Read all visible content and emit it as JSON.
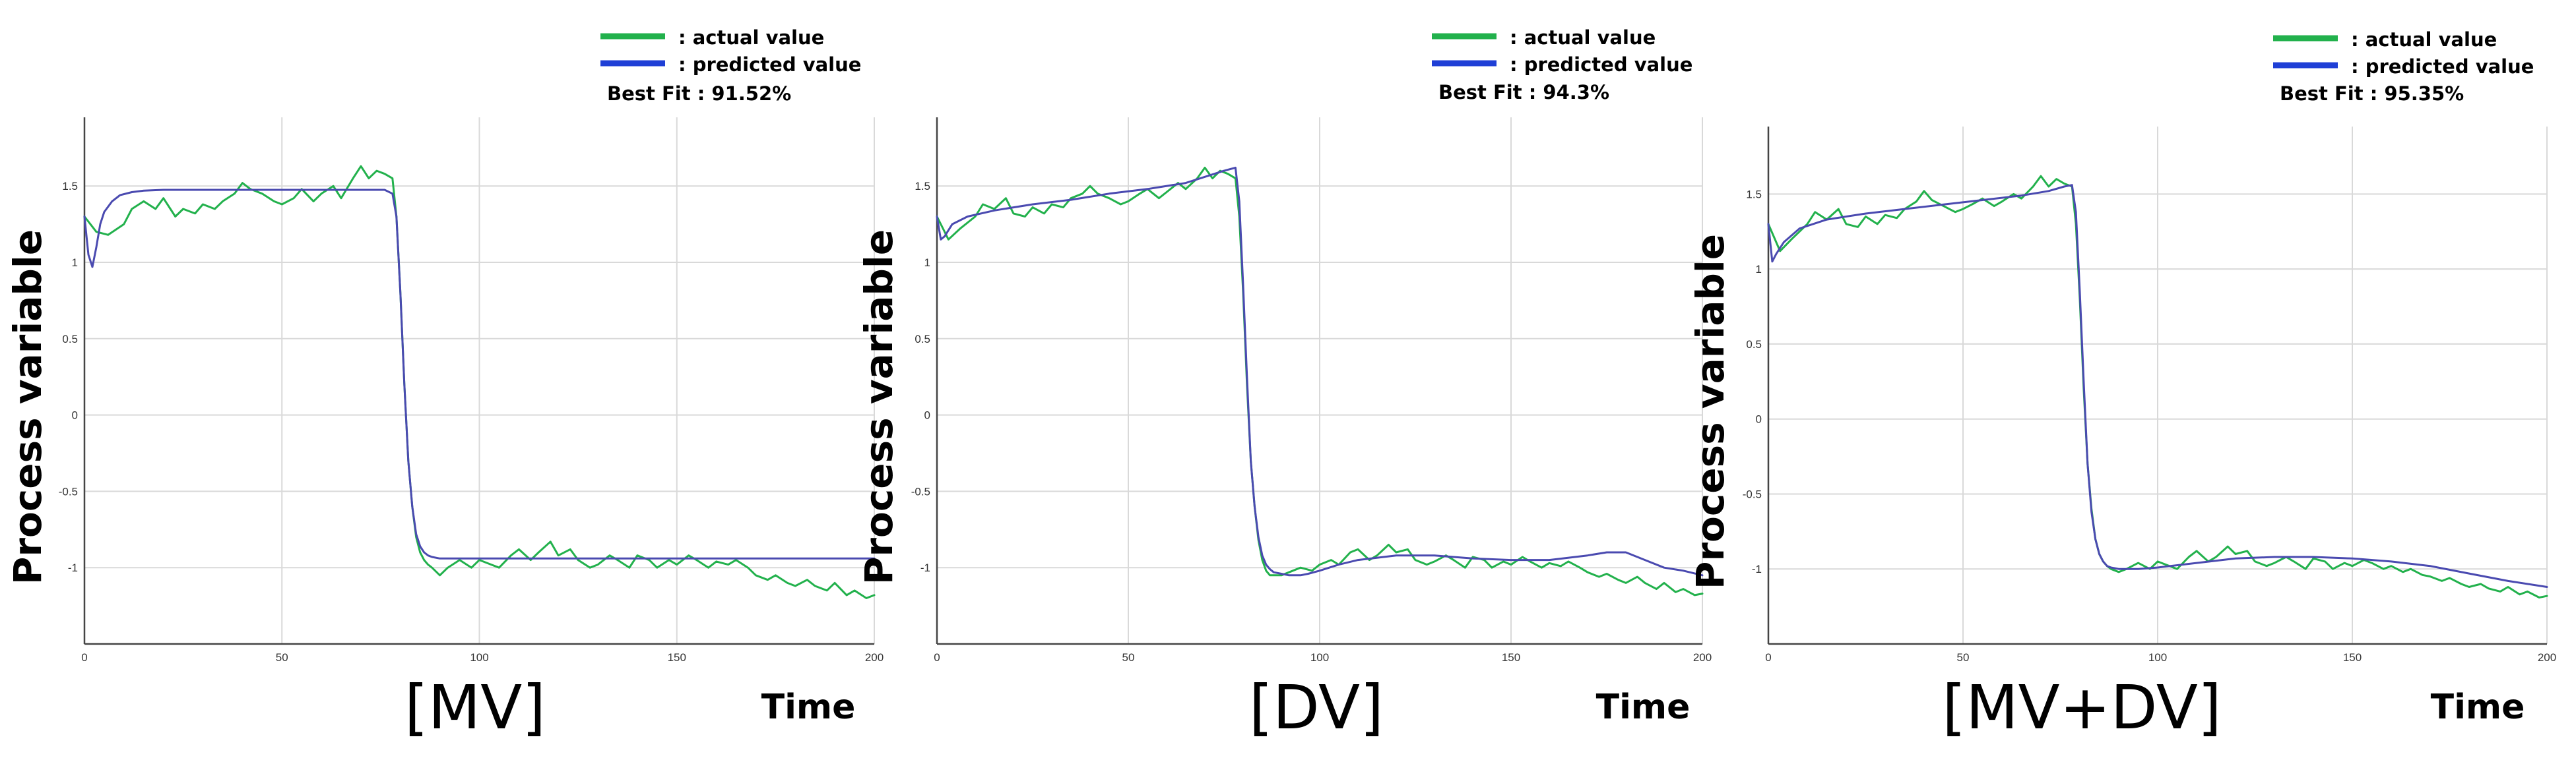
{
  "legend": {
    "actual_label": ": actual value",
    "predicted_label": ": predicted value"
  },
  "colors": {
    "actual": "#22b14c",
    "predicted": "#1f3fd6",
    "predicted_line": "#4a4ab0"
  },
  "chart_data": [
    {
      "type": "line",
      "caption": "[MV]",
      "best_fit": "Best Fit : 91.52%",
      "xlabel": "Time",
      "ylabel": "Process variable",
      "xlim": [
        0,
        200
      ],
      "ylim": [
        -1.5,
        1.95
      ],
      "x_ticks": [
        "0",
        "50",
        "100",
        "150",
        "200"
      ],
      "y_ticks": [
        "-1",
        "-0.5",
        "0",
        "0.5",
        "1",
        "1.5"
      ],
      "grid": true,
      "series": [
        {
          "name": "actual value",
          "x": [
            0,
            3,
            6,
            10,
            12,
            15,
            18,
            20,
            23,
            25,
            28,
            30,
            33,
            35,
            38,
            40,
            42,
            45,
            48,
            50,
            53,
            55,
            58,
            60,
            63,
            65,
            68,
            70,
            72,
            74,
            76,
            78,
            79,
            80,
            81,
            82,
            83,
            84,
            85,
            86,
            87,
            88,
            90,
            92,
            95,
            98,
            100,
            103,
            105,
            108,
            110,
            113,
            115,
            118,
            120,
            123,
            125,
            128,
            130,
            133,
            135,
            138,
            140,
            143,
            145,
            148,
            150,
            153,
            155,
            158,
            160,
            163,
            165,
            168,
            170,
            173,
            175,
            178,
            180,
            183,
            185,
            188,
            190,
            193,
            195,
            198,
            200
          ],
          "y": [
            1.3,
            1.2,
            1.18,
            1.25,
            1.35,
            1.4,
            1.35,
            1.42,
            1.3,
            1.35,
            1.32,
            1.38,
            1.35,
            1.4,
            1.45,
            1.52,
            1.48,
            1.45,
            1.4,
            1.38,
            1.42,
            1.48,
            1.4,
            1.45,
            1.5,
            1.42,
            1.55,
            1.63,
            1.55,
            1.6,
            1.58,
            1.55,
            1.3,
            0.8,
            0.2,
            -0.3,
            -0.6,
            -0.8,
            -0.9,
            -0.95,
            -0.98,
            -1.0,
            -1.05,
            -1.0,
            -0.95,
            -1.0,
            -0.95,
            -0.98,
            -1.0,
            -0.92,
            -0.88,
            -0.95,
            -0.9,
            -0.83,
            -0.92,
            -0.88,
            -0.95,
            -1.0,
            -0.98,
            -0.92,
            -0.95,
            -1.0,
            -0.92,
            -0.95,
            -1.0,
            -0.95,
            -0.98,
            -0.92,
            -0.95,
            -1.0,
            -0.96,
            -0.98,
            -0.95,
            -1.0,
            -1.05,
            -1.08,
            -1.05,
            -1.1,
            -1.12,
            -1.08,
            -1.12,
            -1.15,
            -1.1,
            -1.18,
            -1.15,
            -1.2,
            -1.18
          ]
        },
        {
          "name": "predicted value",
          "x": [
            0,
            1,
            2,
            3,
            4,
            5,
            7,
            9,
            12,
            15,
            20,
            30,
            40,
            50,
            60,
            70,
            76,
            78,
            79,
            80,
            81,
            82,
            83,
            84,
            85,
            86,
            87,
            88,
            90,
            92,
            95,
            100,
            110,
            120,
            140,
            160,
            180,
            200
          ],
          "y": [
            1.3,
            1.05,
            0.97,
            1.1,
            1.25,
            1.33,
            1.4,
            1.44,
            1.46,
            1.47,
            1.475,
            1.475,
            1.475,
            1.475,
            1.475,
            1.475,
            1.475,
            1.45,
            1.3,
            0.8,
            0.2,
            -0.3,
            -0.6,
            -0.78,
            -0.86,
            -0.9,
            -0.92,
            -0.93,
            -0.94,
            -0.94,
            -0.94,
            -0.94,
            -0.94,
            -0.94,
            -0.94,
            -0.94,
            -0.94,
            -0.94
          ]
        }
      ]
    },
    {
      "type": "line",
      "caption": "[DV]",
      "best_fit": "Best Fit : 94.3%",
      "xlabel": "Time",
      "ylabel": "Process variable",
      "xlim": [
        0,
        200
      ],
      "ylim": [
        -1.5,
        1.95
      ],
      "x_ticks": [
        "0",
        "50",
        "100",
        "150",
        "200"
      ],
      "y_ticks": [
        "-1",
        "-0.5",
        "0",
        "0.5",
        "1",
        "1.5"
      ],
      "grid": true,
      "series": [
        {
          "name": "actual value",
          "x": [
            0,
            3,
            6,
            10,
            12,
            15,
            18,
            20,
            23,
            25,
            28,
            30,
            33,
            35,
            38,
            40,
            42,
            45,
            48,
            50,
            53,
            55,
            58,
            60,
            63,
            65,
            68,
            70,
            72,
            74,
            76,
            78,
            79,
            80,
            81,
            82,
            83,
            84,
            85,
            86,
            87,
            88,
            90,
            92,
            95,
            98,
            100,
            103,
            105,
            108,
            110,
            113,
            115,
            118,
            120,
            123,
            125,
            128,
            130,
            133,
            135,
            138,
            140,
            143,
            145,
            148,
            150,
            153,
            155,
            158,
            160,
            163,
            165,
            168,
            170,
            173,
            175,
            178,
            180,
            183,
            185,
            188,
            190,
            193,
            195,
            198,
            200
          ],
          "y": [
            1.3,
            1.15,
            1.22,
            1.3,
            1.38,
            1.35,
            1.42,
            1.32,
            1.3,
            1.36,
            1.32,
            1.38,
            1.36,
            1.42,
            1.45,
            1.5,
            1.45,
            1.42,
            1.38,
            1.4,
            1.45,
            1.48,
            1.42,
            1.46,
            1.52,
            1.48,
            1.55,
            1.62,
            1.55,
            1.6,
            1.58,
            1.55,
            1.3,
            0.8,
            0.2,
            -0.3,
            -0.6,
            -0.82,
            -0.95,
            -1.02,
            -1.05,
            -1.05,
            -1.05,
            -1.03,
            -1.0,
            -1.02,
            -0.98,
            -0.95,
            -0.98,
            -0.9,
            -0.88,
            -0.95,
            -0.92,
            -0.85,
            -0.9,
            -0.88,
            -0.95,
            -0.98,
            -0.96,
            -0.92,
            -0.95,
            -1.0,
            -0.93,
            -0.95,
            -1.0,
            -0.96,
            -0.98,
            -0.93,
            -0.96,
            -1.0,
            -0.97,
            -0.99,
            -0.96,
            -1.0,
            -1.03,
            -1.06,
            -1.04,
            -1.08,
            -1.1,
            -1.06,
            -1.1,
            -1.14,
            -1.1,
            -1.16,
            -1.14,
            -1.18,
            -1.17
          ]
        },
        {
          "name": "predicted value",
          "x": [
            0,
            1,
            2,
            4,
            8,
            15,
            25,
            35,
            45,
            55,
            65,
            70,
            75,
            78,
            79,
            80,
            81,
            82,
            83,
            84,
            85,
            86,
            87,
            88,
            90,
            92,
            95,
            97,
            100,
            105,
            110,
            120,
            130,
            140,
            150,
            160,
            170,
            175,
            180,
            185,
            190,
            195,
            200
          ],
          "y": [
            1.3,
            1.15,
            1.17,
            1.25,
            1.3,
            1.34,
            1.38,
            1.41,
            1.45,
            1.48,
            1.52,
            1.56,
            1.6,
            1.62,
            1.4,
            0.85,
            0.25,
            -0.3,
            -0.6,
            -0.8,
            -0.92,
            -0.98,
            -1.01,
            -1.03,
            -1.04,
            -1.05,
            -1.05,
            -1.04,
            -1.02,
            -0.98,
            -0.95,
            -0.92,
            -0.92,
            -0.94,
            -0.95,
            -0.95,
            -0.92,
            -0.9,
            -0.9,
            -0.95,
            -1.0,
            -1.02,
            -1.05
          ]
        }
      ]
    },
    {
      "type": "line",
      "caption": "[MV+DV]",
      "best_fit": "Best Fit : 95.35%",
      "xlabel": "Time",
      "ylabel": "Process variable",
      "xlim": [
        0,
        200
      ],
      "ylim": [
        -1.5,
        1.95
      ],
      "x_ticks": [
        "0",
        "50",
        "100",
        "150",
        "200"
      ],
      "y_ticks": [
        "-1",
        "-0.5",
        "0",
        "0.5",
        "1",
        "1.5"
      ],
      "grid": true,
      "series": [
        {
          "name": "actual value",
          "x": [
            0,
            3,
            6,
            10,
            12,
            15,
            18,
            20,
            23,
            25,
            28,
            30,
            33,
            35,
            38,
            40,
            42,
            45,
            48,
            50,
            53,
            55,
            58,
            60,
            63,
            65,
            68,
            70,
            72,
            74,
            76,
            78,
            79,
            80,
            81,
            82,
            83,
            84,
            85,
            86,
            87,
            88,
            90,
            92,
            95,
            98,
            100,
            103,
            105,
            108,
            110,
            113,
            115,
            118,
            120,
            123,
            125,
            128,
            130,
            133,
            135,
            138,
            140,
            143,
            145,
            148,
            150,
            153,
            155,
            158,
            160,
            163,
            165,
            168,
            170,
            173,
            175,
            178,
            180,
            183,
            185,
            188,
            190,
            193,
            195,
            198,
            200
          ],
          "y": [
            1.3,
            1.12,
            1.2,
            1.3,
            1.38,
            1.33,
            1.4,
            1.3,
            1.28,
            1.35,
            1.3,
            1.36,
            1.34,
            1.4,
            1.45,
            1.52,
            1.46,
            1.42,
            1.38,
            1.4,
            1.44,
            1.47,
            1.42,
            1.45,
            1.5,
            1.47,
            1.55,
            1.62,
            1.55,
            1.6,
            1.57,
            1.55,
            1.3,
            0.8,
            0.2,
            -0.3,
            -0.6,
            -0.8,
            -0.9,
            -0.95,
            -0.98,
            -1.0,
            -1.02,
            -1.0,
            -0.96,
            -1.0,
            -0.95,
            -0.98,
            -1.0,
            -0.92,
            -0.88,
            -0.95,
            -0.92,
            -0.85,
            -0.9,
            -0.88,
            -0.95,
            -0.98,
            -0.96,
            -0.92,
            -0.95,
            -1.0,
            -0.93,
            -0.95,
            -1.0,
            -0.96,
            -0.98,
            -0.94,
            -0.96,
            -1.0,
            -0.98,
            -1.02,
            -1.0,
            -1.04,
            -1.05,
            -1.08,
            -1.06,
            -1.1,
            -1.12,
            -1.1,
            -1.13,
            -1.15,
            -1.12,
            -1.17,
            -1.15,
            -1.19,
            -1.18
          ]
        },
        {
          "name": "predicted value",
          "x": [
            0,
            1,
            2,
            4,
            8,
            15,
            25,
            35,
            45,
            55,
            65,
            72,
            76,
            78,
            79,
            80,
            81,
            82,
            83,
            84,
            85,
            86,
            87,
            88,
            90,
            92,
            95,
            100,
            110,
            120,
            130,
            140,
            150,
            160,
            170,
            180,
            190,
            200
          ],
          "y": [
            1.3,
            1.05,
            1.1,
            1.18,
            1.27,
            1.33,
            1.37,
            1.4,
            1.43,
            1.46,
            1.49,
            1.52,
            1.55,
            1.56,
            1.38,
            0.85,
            0.25,
            -0.3,
            -0.62,
            -0.8,
            -0.9,
            -0.95,
            -0.98,
            -0.99,
            -1.0,
            -1.0,
            -1.0,
            -0.99,
            -0.96,
            -0.93,
            -0.92,
            -0.92,
            -0.93,
            -0.95,
            -0.98,
            -1.03,
            -1.08,
            -1.12
          ]
        }
      ]
    }
  ]
}
